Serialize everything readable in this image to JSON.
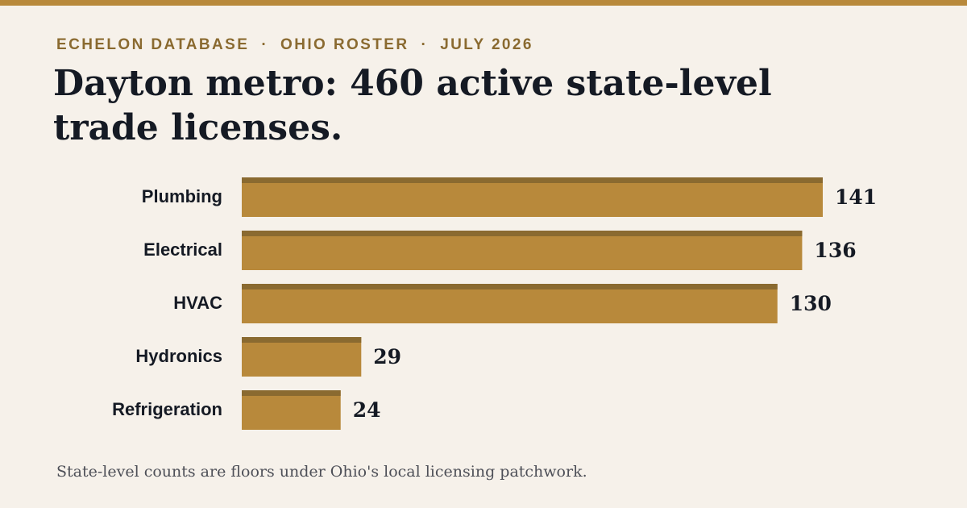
{
  "header": {
    "kicker": [
      "ECHELON DATABASE",
      "OHIO ROSTER",
      "JULY 2026"
    ],
    "separator": "·",
    "title": "Dayton metro: 460 active state-level trade licenses."
  },
  "footnote": "State-level counts are floors under Ohio's local licensing patchwork.",
  "colors": {
    "background": "#f6f1ea",
    "accent": "#b8893b",
    "bar": "#b8893b",
    "bar_cap": "#8a6a30",
    "text": "#151a24"
  },
  "chart_data": {
    "type": "bar",
    "orientation": "horizontal",
    "categories": [
      "Plumbing",
      "Electrical",
      "HVAC",
      "Hydronics",
      "Refrigeration"
    ],
    "values": [
      141,
      136,
      130,
      29,
      24
    ],
    "title": "Dayton metro: 460 active state-level trade licenses.",
    "xlabel": "",
    "ylabel": "",
    "xlim": [
      0,
      141
    ],
    "grid": false,
    "legend": "none"
  }
}
